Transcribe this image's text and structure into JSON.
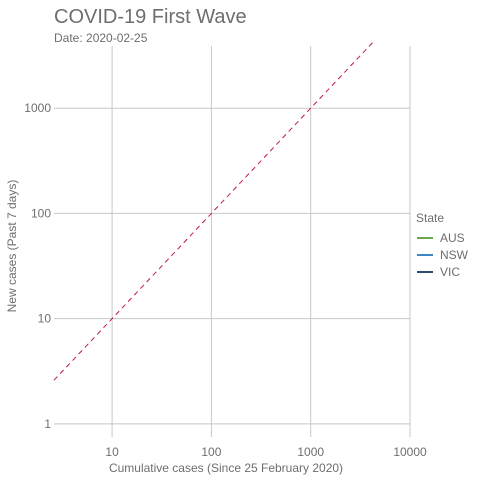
{
  "chart_data": {
    "type": "line",
    "title": "COVID-19 First Wave",
    "subtitle": "Date: 2020-02-25",
    "xlabel": "Cumulative cases (Since 25 February 2020)",
    "ylabel": "New cases (Past 7 days)",
    "x_scale": "log10",
    "y_scale": "log10",
    "xlim": [
      2.6,
      10000
    ],
    "ylim": [
      0.75,
      3900
    ],
    "x_ticks": [
      {
        "value": 10,
        "label": "10"
      },
      {
        "value": 100,
        "label": "100"
      },
      {
        "value": 1000,
        "label": "1000"
      },
      {
        "value": 10000,
        "label": "10000"
      }
    ],
    "y_ticks": [
      {
        "value": 1,
        "label": "1"
      },
      {
        "value": 10,
        "label": "10"
      },
      {
        "value": 100,
        "label": "100"
      },
      {
        "value": 1000,
        "label": "1000"
      }
    ],
    "grid": true,
    "reference_line": {
      "style": "dashed",
      "color": "#c0174a",
      "x": [
        2.6,
        4300
      ],
      "y": [
        2.6,
        4300
      ]
    },
    "legend": {
      "title": "State",
      "placement": "right",
      "entries": [
        {
          "label": "AUS",
          "color": "#6aa84f"
        },
        {
          "label": "NSW",
          "color": "#3d85c6"
        },
        {
          "label": "VIC",
          "color": "#2f4a6b"
        }
      ]
    },
    "series": [
      {
        "name": "AUS",
        "color": "#6aa84f",
        "x": [],
        "y": []
      },
      {
        "name": "NSW",
        "color": "#3d85c6",
        "x": [],
        "y": []
      },
      {
        "name": "VIC",
        "color": "#2f4a6b",
        "x": [],
        "y": []
      }
    ]
  }
}
